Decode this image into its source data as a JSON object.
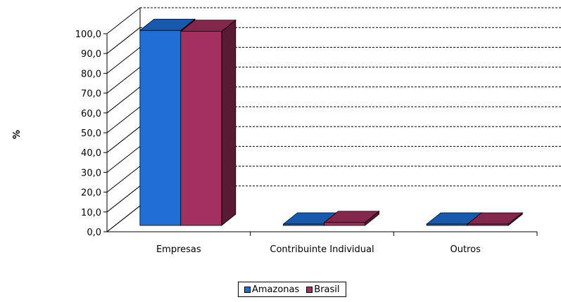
{
  "chart_data": {
    "type": "bar",
    "categories": [
      "Empresas",
      "Contribuinte Individual",
      "Outros"
    ],
    "series": [
      {
        "name": "Amazonas",
        "values": [
          98.5,
          0.5,
          0.5
        ],
        "color": "#1f6fd6"
      },
      {
        "name": "Brasil",
        "values": [
          98.0,
          1.5,
          0.5
        ],
        "color": "#a3305f"
      }
    ],
    "ylabel": "%",
    "ylim": [
      0,
      100
    ],
    "yticks": [
      "0,0",
      "10,0",
      "20,0",
      "30,0",
      "40,0",
      "50,0",
      "60,0",
      "70,0",
      "80,0",
      "90,0",
      "100,0"
    ],
    "grid": true,
    "style": "3d",
    "legend_position": "bottom"
  }
}
